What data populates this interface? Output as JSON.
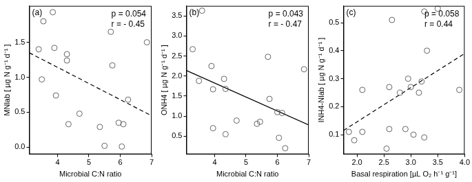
{
  "chart_data": [
    {
      "type": "scatter",
      "panel_label": "(a)",
      "annotations": [
        "p = 0.054",
        "r = - 0.45"
      ],
      "x_label": "Microbial C:N ratio",
      "y_label": "MNlab [ µg N g⁻¹ d⁻¹ ]",
      "xlim": [
        3.1,
        7.0
      ],
      "xticks": [
        4,
        5,
        6,
        7
      ],
      "ylim": [
        -0.1,
        2.02
      ],
      "yticks": [
        {
          "value": 0,
          "label": "0.0"
        },
        0.5,
        {
          "value": 1,
          "label": "1.0"
        },
        1.5
      ],
      "grid": false,
      "series": [
        {
          "type": "scatter",
          "marker": "circle",
          "color": "#555555",
          "x": [
            3.4,
            3.5,
            3.55,
            3.85,
            3.9,
            3.95,
            4.3,
            4.3,
            4.35,
            4.7,
            5.35,
            5.5,
            5.7,
            5.75,
            5.95,
            6.05,
            6.1,
            6.25,
            6.85
          ],
          "values": [
            1.4,
            0.97,
            1.8,
            1.93,
            1.42,
            0.74,
            1.33,
            1.24,
            0.33,
            0.48,
            0.29,
            0.02,
            1.65,
            1.17,
            0.35,
            0.01,
            0.33,
            0.68,
            1.5
          ]
        },
        {
          "type": "line",
          "line_style": "dashed",
          "color": "#000000",
          "x": [
            3.1,
            7.0
          ],
          "values": [
            1.35,
            0.45
          ]
        }
      ]
    },
    {
      "type": "scatter",
      "panel_label": "(b)",
      "annotations": [
        "p = 0.043",
        "r = - 0.47"
      ],
      "x_label": "Microbial C:N ratio",
      "y_label": "ONH4 [ µg N g⁻¹ d⁻¹ ]",
      "xlim": [
        3.1,
        7.0
      ],
      "xticks": [
        4,
        5,
        6,
        7
      ],
      "ylim": [
        0.05,
        3.75
      ],
      "yticks": [
        0.5,
        {
          "value": 1,
          "label": "1.0"
        },
        1.5,
        {
          "value": 2,
          "label": "2.0"
        },
        2.5,
        {
          "value": 3,
          "label": "3.0"
        },
        3.5
      ],
      "grid": false,
      "series": [
        {
          "type": "scatter",
          "marker": "circle",
          "color": "#555555",
          "x": [
            3.3,
            3.5,
            3.6,
            3.9,
            3.95,
            3.95,
            4.3,
            4.35,
            4.35,
            4.7,
            5.35,
            5.45,
            5.7,
            5.75,
            6.0,
            6.05,
            6.15,
            6.25,
            6.85
          ],
          "values": [
            2.67,
            1.88,
            3.63,
            2.25,
            1.67,
            0.7,
            1.93,
            1.68,
            0.55,
            0.89,
            0.81,
            0.86,
            2.48,
            1.43,
            1.1,
            0.46,
            1.08,
            0.2,
            2.17
          ]
        },
        {
          "type": "line",
          "line_style": "solid",
          "color": "#000000",
          "x": [
            3.1,
            7.0
          ],
          "values": [
            2.14,
            0.78
          ]
        }
      ]
    },
    {
      "type": "scatter",
      "panel_label": "(c)",
      "annotations": [
        "p = 0.058",
        "r = 0.44"
      ],
      "x_label": "Basal respiration [µL O₂ h⁻¹ g⁻¹]",
      "y_label": "INH4-Nlab [ µg N g⁻¹ d⁻¹ ]",
      "xlim": [
        1.75,
        4.0
      ],
      "xticks": [
        {
          "value": 2,
          "label": "2.0"
        },
        2.5,
        {
          "value": 3,
          "label": "3.0"
        },
        3.5,
        {
          "value": 4,
          "label": "4.0"
        }
      ],
      "ylim": [
        0.03,
        0.56
      ],
      "yticks": [
        0.1,
        0.2,
        0.3,
        0.4,
        0.5
      ],
      "grid": false,
      "series": [
        {
          "type": "scatter",
          "marker": "circle",
          "color": "#555555",
          "x": [
            1.85,
            1.95,
            2.1,
            2.1,
            2.55,
            2.6,
            2.6,
            2.65,
            2.8,
            2.9,
            2.95,
            3.0,
            3.05,
            3.15,
            3.2,
            3.25,
            3.25,
            3.3,
            3.5,
            3.9
          ],
          "values": [
            0.11,
            0.08,
            0.11,
            0.26,
            0.05,
            0.27,
            0.12,
            0.51,
            0.25,
            0.12,
            0.3,
            0.27,
            0.1,
            0.25,
            0.29,
            0.09,
            0.54,
            0.4,
            0.55,
            0.26
          ]
        },
        {
          "type": "line",
          "line_style": "dashed",
          "color": "#000000",
          "x": [
            1.75,
            4.0
          ],
          "values": [
            0.115,
            0.39
          ]
        }
      ]
    }
  ]
}
